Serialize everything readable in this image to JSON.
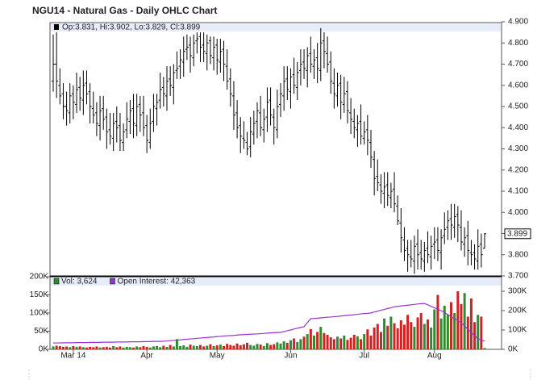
{
  "chart_data": [
    {
      "type": "ohlc",
      "title": "NGU14 - Natural Gas - Daily OHLC Chart",
      "legend": "Op:3.831, Hi:3.902, Lo:3.829, Cl:3.899",
      "color": "#000000",
      "categories": [
        null,
        null,
        null,
        null,
        null,
        null,
        "Mar 14",
        null,
        null,
        null,
        null,
        null,
        null,
        null,
        null,
        null,
        null,
        null,
        null,
        null,
        null,
        null,
        null,
        null,
        null,
        null,
        null,
        null,
        "Apr",
        null,
        null,
        null,
        null,
        null,
        null,
        null,
        null,
        null,
        null,
        null,
        null,
        null,
        null,
        null,
        null,
        null,
        null,
        null,
        null,
        "May",
        null,
        null,
        null,
        null,
        null,
        null,
        null,
        null,
        null,
        null,
        null,
        null,
        null,
        null,
        null,
        null,
        null,
        null,
        null,
        null,
        null,
        "Jun",
        null,
        null,
        null,
        null,
        null,
        null,
        null,
        null,
        null,
        null,
        null,
        null,
        null,
        null,
        null,
        null,
        null,
        null,
        null,
        null,
        null,
        "Jul",
        null,
        null,
        null,
        null,
        null,
        null,
        null,
        null,
        null,
        null,
        null,
        null,
        null,
        null,
        null,
        null,
        null,
        null,
        null,
        null,
        "Aug",
        null,
        null,
        null,
        null,
        null,
        null,
        null,
        null,
        null,
        null,
        null,
        null,
        null,
        null,
        null
      ],
      "open": [
        4.62,
        4.7,
        4.6,
        4.56,
        4.5,
        4.47,
        4.56,
        4.51,
        4.59,
        4.53,
        4.61,
        4.57,
        4.49,
        4.47,
        4.41,
        4.49,
        4.45,
        4.39,
        4.35,
        4.43,
        4.41,
        4.33,
        4.39,
        4.43,
        4.49,
        4.41,
        4.51,
        4.47,
        4.41,
        4.33,
        4.43,
        4.49,
        4.53,
        4.59,
        4.55,
        4.63,
        4.59,
        4.67,
        4.69,
        4.71,
        4.77,
        4.79,
        4.73,
        4.81,
        4.83,
        4.79,
        4.75,
        4.81,
        4.73,
        4.79,
        4.71,
        4.77,
        4.69,
        4.63,
        4.55,
        4.47,
        4.41,
        4.35,
        4.33,
        4.31,
        4.37,
        4.43,
        4.47,
        4.39,
        4.45,
        4.53,
        4.45,
        4.39,
        4.51,
        4.55,
        4.63,
        4.57,
        4.65,
        4.59,
        4.67,
        4.71,
        4.67,
        4.75,
        4.69,
        4.73,
        4.67,
        4.81,
        4.75,
        4.71,
        4.61,
        4.55,
        4.61,
        4.51,
        4.57,
        4.47,
        4.43,
        4.39,
        4.43,
        4.35,
        4.39,
        4.33,
        4.25,
        4.17,
        4.13,
        4.09,
        4.13,
        4.07,
        4.11,
        4.03,
        3.95,
        3.87,
        3.83,
        3.79,
        3.77,
        3.85,
        3.81,
        3.77,
        3.83,
        3.79,
        3.85,
        3.87,
        3.81,
        3.89,
        3.93,
        3.97,
        3.93,
        3.99,
        3.93,
        3.85,
        3.89,
        3.81,
        3.81,
        3.77,
        3.85,
        3.831
      ],
      "high": [
        4.84,
        4.85,
        4.68,
        4.61,
        4.57,
        4.61,
        4.6,
        4.66,
        4.64,
        4.67,
        4.67,
        4.61,
        4.57,
        4.52,
        4.55,
        4.55,
        4.49,
        4.47,
        4.47,
        4.5,
        4.47,
        4.42,
        4.52,
        4.53,
        4.56,
        4.56,
        4.55,
        4.55,
        4.46,
        4.49,
        4.56,
        4.56,
        4.66,
        4.64,
        4.69,
        4.69,
        4.7,
        4.76,
        4.77,
        4.83,
        4.84,
        4.83,
        4.84,
        4.85,
        4.85,
        4.85,
        4.84,
        4.83,
        4.83,
        4.82,
        4.82,
        4.81,
        4.77,
        4.68,
        4.62,
        4.53,
        4.45,
        4.43,
        4.38,
        4.45,
        4.48,
        4.52,
        4.55,
        4.49,
        4.59,
        4.59,
        4.49,
        4.58,
        4.61,
        4.69,
        4.69,
        4.68,
        4.73,
        4.71,
        4.77,
        4.77,
        4.78,
        4.83,
        4.77,
        4.8,
        4.87,
        4.85,
        4.83,
        4.76,
        4.68,
        4.66,
        4.65,
        4.64,
        4.62,
        4.54,
        4.49,
        4.46,
        4.51,
        4.43,
        4.46,
        4.39,
        4.29,
        4.25,
        4.18,
        4.19,
        4.19,
        4.14,
        4.19,
        4.08,
        4.02,
        3.93,
        3.87,
        3.87,
        3.89,
        3.92,
        3.87,
        3.86,
        3.91,
        3.89,
        3.93,
        3.93,
        3.92,
        4.0,
        4.01,
        4.04,
        4.04,
        4.03,
        4.01,
        3.93,
        3.96,
        3.87,
        3.85,
        3.92,
        3.9,
        3.902
      ],
      "low": [
        4.57,
        4.54,
        4.51,
        4.44,
        4.41,
        4.42,
        4.44,
        4.47,
        4.48,
        4.46,
        4.51,
        4.42,
        4.42,
        4.36,
        4.34,
        4.39,
        4.3,
        4.32,
        4.29,
        4.33,
        4.29,
        4.29,
        4.35,
        4.37,
        4.35,
        4.36,
        4.38,
        4.36,
        4.28,
        4.3,
        4.38,
        4.41,
        4.49,
        4.5,
        4.48,
        4.55,
        4.51,
        4.63,
        4.63,
        4.64,
        4.72,
        4.66,
        4.69,
        4.75,
        4.71,
        4.71,
        4.67,
        4.7,
        4.67,
        4.65,
        4.66,
        4.62,
        4.58,
        4.5,
        4.39,
        4.35,
        4.28,
        4.3,
        4.27,
        4.26,
        4.32,
        4.35,
        4.36,
        4.33,
        4.38,
        4.41,
        4.32,
        4.35,
        4.45,
        4.48,
        4.53,
        4.49,
        4.56,
        4.53,
        4.6,
        4.63,
        4.59,
        4.66,
        4.63,
        4.61,
        4.62,
        4.68,
        4.66,
        4.56,
        4.49,
        4.5,
        4.44,
        4.47,
        4.42,
        4.37,
        4.35,
        4.31,
        4.32,
        4.32,
        4.27,
        4.21,
        4.08,
        4.1,
        4.04,
        4.02,
        4.03,
        4.02,
        4.0,
        3.94,
        3.81,
        3.77,
        3.72,
        3.74,
        3.71,
        3.73,
        3.73,
        3.72,
        3.76,
        3.73,
        3.78,
        3.77,
        3.73,
        3.85,
        3.87,
        3.87,
        3.88,
        3.86,
        3.82,
        3.79,
        3.75,
        3.75,
        3.73,
        3.73,
        3.74,
        3.829
      ],
      "close": [
        4.7,
        4.62,
        4.55,
        4.5,
        4.48,
        4.55,
        4.52,
        4.58,
        4.54,
        4.6,
        4.56,
        4.5,
        4.46,
        4.42,
        4.48,
        4.44,
        4.38,
        4.36,
        4.42,
        4.4,
        4.34,
        4.38,
        4.44,
        4.48,
        4.42,
        4.5,
        4.46,
        4.4,
        4.34,
        4.42,
        4.5,
        4.52,
        4.58,
        4.56,
        4.62,
        4.6,
        4.66,
        4.68,
        4.72,
        4.76,
        4.78,
        4.74,
        4.8,
        4.82,
        4.78,
        4.76,
        4.8,
        4.74,
        4.78,
        4.72,
        4.76,
        4.7,
        4.62,
        4.56,
        4.46,
        4.4,
        4.36,
        4.34,
        4.3,
        4.38,
        4.42,
        4.48,
        4.4,
        4.44,
        4.52,
        4.46,
        4.4,
        4.5,
        4.56,
        4.62,
        4.58,
        4.64,
        4.6,
        4.66,
        4.7,
        4.68,
        4.74,
        4.7,
        4.72,
        4.68,
        4.8,
        4.76,
        4.7,
        4.62,
        4.56,
        4.6,
        4.52,
        4.56,
        4.48,
        4.44,
        4.4,
        4.42,
        4.36,
        4.38,
        4.34,
        4.26,
        4.16,
        4.14,
        4.1,
        4.12,
        4.08,
        4.1,
        4.04,
        3.96,
        3.88,
        3.82,
        3.8,
        3.78,
        3.84,
        3.8,
        3.78,
        3.82,
        3.8,
        3.84,
        3.86,
        3.82,
        3.88,
        3.92,
        3.96,
        3.94,
        3.98,
        3.94,
        3.86,
        3.88,
        3.82,
        3.8,
        3.78,
        3.84,
        3.8,
        3.899
      ],
      "ylim": [
        3.7,
        4.9
      ],
      "yticks": [
        {
          "value": 3.7,
          "label": "3.700"
        },
        {
          "value": 3.8,
          "label": "3.800"
        },
        {
          "value": 3.9,
          "label": "3.900"
        },
        {
          "value": 4.0,
          "label": "4.000"
        },
        {
          "value": 4.1,
          "label": "4.100"
        },
        {
          "value": 4.2,
          "label": "4.200"
        },
        {
          "value": 4.3,
          "label": "4.300"
        },
        {
          "value": 4.4,
          "label": "4.400"
        },
        {
          "value": 4.5,
          "label": "4.500"
        },
        {
          "value": 4.6,
          "label": "4.600"
        },
        {
          "value": 4.7,
          "label": "4.700"
        },
        {
          "value": 4.8,
          "label": "4.800"
        },
        {
          "value": 4.9,
          "label": "4.900"
        }
      ]
    },
    {
      "type": "bar",
      "up_color": "#2e8b2e",
      "down_color": "#d42020",
      "series": [
        {
          "name": "Vol: 3,624",
          "color": "#2e8b2e",
          "values": [
            8,
            10,
            9,
            7,
            8,
            6,
            9,
            7,
            8,
            6,
            5,
            7,
            6,
            8,
            5,
            6,
            7,
            5,
            9,
            6,
            8,
            5,
            7,
            6,
            5,
            8,
            6,
            9,
            7,
            5,
            8,
            9,
            6,
            10,
            7,
            12,
            8,
            28,
            9,
            11,
            7,
            13,
            10,
            9,
            12,
            8,
            10,
            14,
            9,
            11,
            13,
            9,
            15,
            12,
            10,
            16,
            11,
            14,
            18,
            12,
            10,
            15,
            13,
            9,
            17,
            12,
            14,
            19,
            16,
            22,
            18,
            25,
            30,
            20,
            28,
            35,
            42,
            56,
            38,
            48,
            62,
            45,
            40,
            33,
            28,
            35,
            30,
            38,
            26,
            32,
            40,
            36,
            28,
            42,
            55,
            38,
            60,
            70,
            48,
            85,
            65,
            90,
            72,
            58,
            80,
            68,
            95,
            75,
            62,
            88,
            100,
            70,
            82,
            60,
            110,
            150,
            85,
            120,
            95,
            130,
            100,
            160,
            125,
            155,
            90,
            140,
            75,
            95,
            90,
            3.624
          ]
        },
        {
          "name": "Open Interest: 42,363",
          "color": "#9933cc",
          "axis": "y2",
          "values": [
            33,
            33,
            33,
            34,
            34,
            34,
            34,
            35,
            35,
            35,
            35,
            36,
            36,
            36,
            36,
            37,
            37,
            37,
            37,
            38,
            38,
            38,
            38,
            39,
            39,
            39,
            39,
            40,
            40,
            40,
            41,
            41,
            41,
            42,
            43,
            45,
            46,
            48,
            49,
            51,
            52,
            54,
            55,
            57,
            58,
            60,
            61,
            63,
            64,
            66,
            67,
            69,
            70,
            71,
            72,
            74,
            75,
            76,
            77,
            78,
            79,
            80,
            81,
            82,
            84,
            85,
            86,
            87,
            88,
            92,
            96,
            100,
            105,
            109,
            113,
            117,
            138,
            158,
            160,
            161,
            163,
            164,
            166,
            167,
            169,
            170,
            172,
            174,
            176,
            177,
            179,
            181,
            183,
            185,
            186,
            188,
            193,
            197,
            202,
            206,
            211,
            215,
            220,
            222,
            224,
            226,
            228,
            230,
            232,
            234,
            236,
            237,
            230,
            222,
            215,
            207,
            200,
            190,
            179,
            169,
            158,
            148,
            137,
            121,
            104,
            88,
            71,
            55,
            48,
            42.363
          ]
        }
      ],
      "ylim": [
        0,
        200
      ],
      "yticks": [
        {
          "value": 0,
          "label": "0K"
        },
        {
          "value": 50,
          "label": "50K"
        },
        {
          "value": 100,
          "label": "100K"
        },
        {
          "value": 150,
          "label": "150K"
        },
        {
          "value": 200,
          "label": "200K"
        }
      ],
      "y2lim": [
        0,
        375
      ],
      "y2ticks": [
        {
          "value": 0,
          "label": "0K"
        },
        {
          "value": 100,
          "label": "100K"
        },
        {
          "value": 200,
          "label": "200K"
        },
        {
          "value": 300,
          "label": "300K"
        }
      ]
    }
  ]
}
